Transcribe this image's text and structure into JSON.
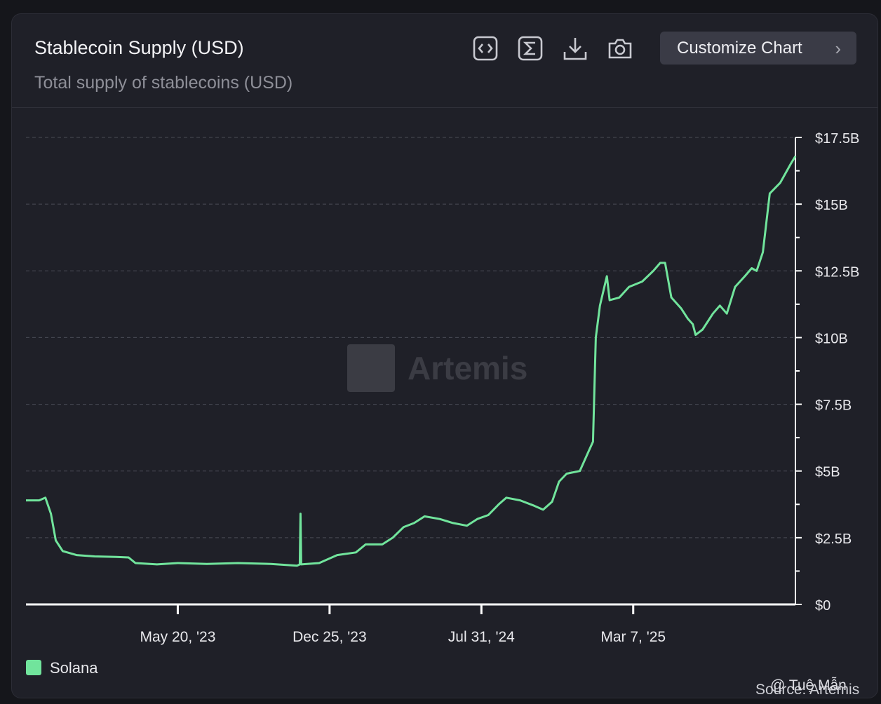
{
  "header": {
    "title": "Stablecoin Supply (USD)",
    "subtitle": "Total supply of stablecoins (USD)",
    "customize_label": "Customize Chart",
    "tools": [
      "code-icon",
      "sigma-icon",
      "download-icon",
      "camera-icon"
    ]
  },
  "watermark": "Artemis",
  "source": "Source: Artemis",
  "corner_mark": "@ Tuệ Mẫn",
  "colors": {
    "series": "#71e49c",
    "background": "#1f2028",
    "grid": "#4a4b55"
  },
  "chart_data": {
    "type": "line",
    "x_ticks": [
      "May 20, '23",
      "Dec 25, '23",
      "Jul 31, '24",
      "Mar 7, '25"
    ],
    "x_range": [
      "2022-10-13",
      "2025-10-27"
    ],
    "y_ticks": [
      "$0",
      "$2.5B",
      "$5B",
      "$7.5B",
      "$10B",
      "$12.5B",
      "$15B",
      "$17.5B"
    ],
    "ylim": [
      0,
      17.5
    ],
    "grid": true,
    "legend_position": "bottom-left",
    "series": [
      {
        "name": "Solana",
        "color": "#71e49c",
        "points": [
          [
            "2022-10-13",
            3.9
          ],
          [
            "2022-11-01",
            3.9
          ],
          [
            "2022-11-10",
            4.0
          ],
          [
            "2022-11-18",
            3.4
          ],
          [
            "2022-11-25",
            2.4
          ],
          [
            "2022-12-05",
            2.0
          ],
          [
            "2022-12-25",
            1.85
          ],
          [
            "2023-01-20",
            1.8
          ],
          [
            "2023-02-20",
            1.78
          ],
          [
            "2023-03-10",
            1.76
          ],
          [
            "2023-03-20",
            1.55
          ],
          [
            "2023-04-20",
            1.5
          ],
          [
            "2023-05-20",
            1.55
          ],
          [
            "2023-07-01",
            1.52
          ],
          [
            "2023-08-15",
            1.55
          ],
          [
            "2023-10-01",
            1.52
          ],
          [
            "2023-11-08",
            1.45
          ],
          [
            "2023-11-12",
            1.5
          ],
          [
            "2023-11-13",
            3.4
          ],
          [
            "2023-11-14",
            1.5
          ],
          [
            "2023-12-10",
            1.55
          ],
          [
            "2024-01-05",
            1.85
          ],
          [
            "2024-02-01",
            1.95
          ],
          [
            "2024-02-15",
            2.25
          ],
          [
            "2024-03-10",
            2.25
          ],
          [
            "2024-03-25",
            2.5
          ],
          [
            "2024-04-10",
            2.9
          ],
          [
            "2024-04-25",
            3.05
          ],
          [
            "2024-05-10",
            3.3
          ],
          [
            "2024-06-01",
            3.2
          ],
          [
            "2024-06-20",
            3.05
          ],
          [
            "2024-07-10",
            2.95
          ],
          [
            "2024-07-25",
            3.2
          ],
          [
            "2024-08-10",
            3.35
          ],
          [
            "2024-08-25",
            3.75
          ],
          [
            "2024-09-05",
            4.0
          ],
          [
            "2024-09-25",
            3.9
          ],
          [
            "2024-10-15",
            3.7
          ],
          [
            "2024-10-28",
            3.55
          ],
          [
            "2024-11-10",
            3.85
          ],
          [
            "2024-11-20",
            4.6
          ],
          [
            "2024-12-01",
            4.9
          ],
          [
            "2024-12-20",
            5.0
          ],
          [
            "2025-01-01",
            5.7
          ],
          [
            "2025-01-08",
            6.1
          ],
          [
            "2025-01-12",
            10.0
          ],
          [
            "2025-01-18",
            11.2
          ],
          [
            "2025-01-28",
            12.3
          ],
          [
            "2025-02-01",
            11.4
          ],
          [
            "2025-02-15",
            11.5
          ],
          [
            "2025-03-01",
            11.9
          ],
          [
            "2025-03-20",
            12.1
          ],
          [
            "2025-04-05",
            12.5
          ],
          [
            "2025-04-15",
            12.8
          ],
          [
            "2025-04-22",
            12.8
          ],
          [
            "2025-05-01",
            11.5
          ],
          [
            "2025-05-15",
            11.1
          ],
          [
            "2025-05-25",
            10.7
          ],
          [
            "2025-06-01",
            10.5
          ],
          [
            "2025-06-05",
            10.1
          ],
          [
            "2025-06-15",
            10.3
          ],
          [
            "2025-06-30",
            10.9
          ],
          [
            "2025-07-10",
            11.2
          ],
          [
            "2025-07-20",
            10.9
          ],
          [
            "2025-08-01",
            11.9
          ],
          [
            "2025-08-15",
            12.3
          ],
          [
            "2025-08-25",
            12.6
          ],
          [
            "2025-09-01",
            12.5
          ],
          [
            "2025-09-10",
            13.2
          ],
          [
            "2025-09-20",
            15.4
          ],
          [
            "2025-10-05",
            15.8
          ],
          [
            "2025-10-20",
            16.5
          ],
          [
            "2025-10-27",
            16.8
          ]
        ]
      }
    ]
  }
}
